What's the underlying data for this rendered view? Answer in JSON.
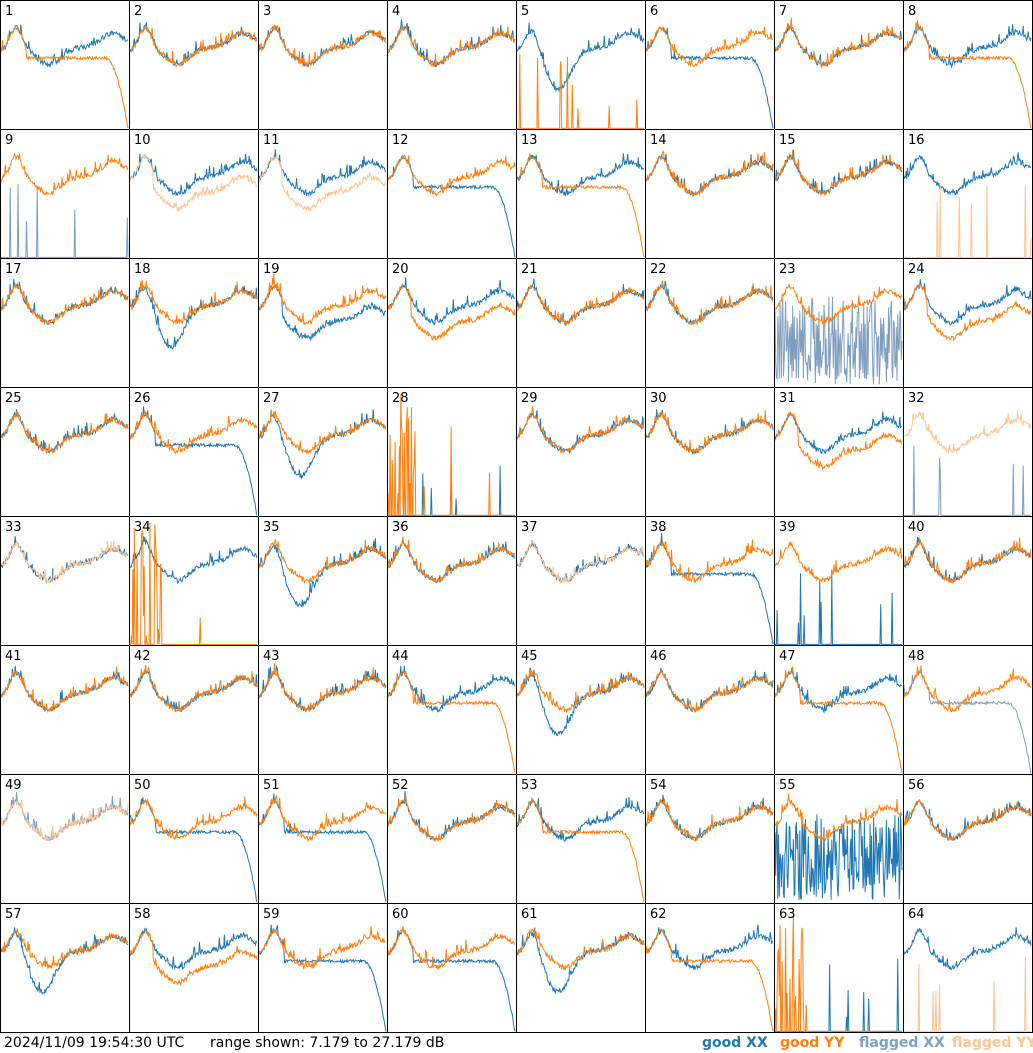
{
  "timestamp": "2024/11/09 19:54:30 UTC",
  "range_text": "range shown: 7.179 to 27.179 dB",
  "colors": {
    "good_xx": "#1f77b4",
    "good_yy": "#ff7f0e",
    "flagged_xx": "#7f9fbf",
    "flagged_yy": "#ffc493"
  },
  "legend": [
    {
      "word": "good",
      "pol": "XX",
      "color": "#1f77b4"
    },
    {
      "word": "good",
      "pol": "YY",
      "color": "#ff7f0e"
    },
    {
      "word": "flagged",
      "pol": "XX",
      "color": "#7f9fbf"
    },
    {
      "word": "flagged",
      "pol": "YY",
      "color": "#ffc493"
    }
  ],
  "chart_data": {
    "type": "line",
    "title": "",
    "ylim": [
      7.179,
      27.179
    ],
    "y_unit": "dB",
    "grid": "8x8 small multiples",
    "panels": [
      {
        "label": "1",
        "xx": "good",
        "yy": "good",
        "xx_shape": "normal",
        "yy_shape": "rolloff"
      },
      {
        "label": "2",
        "xx": "good",
        "yy": "good",
        "xx_shape": "normal",
        "yy_shape": "normal"
      },
      {
        "label": "3",
        "xx": "good",
        "yy": "good",
        "xx_shape": "normal",
        "yy_shape": "normal"
      },
      {
        "label": "4",
        "xx": "good",
        "yy": "good",
        "xx_shape": "normal",
        "yy_shape": "normal"
      },
      {
        "label": "5",
        "xx": "good",
        "yy": "good",
        "xx_shape": "dip",
        "yy_shape": "flat_spikes"
      },
      {
        "label": "6",
        "xx": "good",
        "yy": "good",
        "xx_shape": "rolloff",
        "yy_shape": "normal"
      },
      {
        "label": "7",
        "xx": "good",
        "yy": "good",
        "xx_shape": "normal",
        "yy_shape": "normal"
      },
      {
        "label": "8",
        "xx": "good",
        "yy": "good",
        "xx_shape": "normal",
        "yy_shape": "rolloff"
      },
      {
        "label": "9",
        "xx": "flagged",
        "yy": "good",
        "xx_shape": "flat_spikes",
        "yy_shape": "normal"
      },
      {
        "label": "10",
        "xx": "good",
        "yy": "flagged",
        "xx_shape": "normal",
        "yy_shape": "low"
      },
      {
        "label": "11",
        "xx": "good",
        "yy": "flagged",
        "xx_shape": "normal",
        "yy_shape": "low"
      },
      {
        "label": "12",
        "xx": "good",
        "yy": "good",
        "xx_shape": "rolloff",
        "yy_shape": "normal"
      },
      {
        "label": "13",
        "xx": "good",
        "yy": "good",
        "xx_shape": "normal",
        "yy_shape": "rolloff"
      },
      {
        "label": "14",
        "xx": "good",
        "yy": "good",
        "xx_shape": "normal",
        "yy_shape": "normal"
      },
      {
        "label": "15",
        "xx": "good",
        "yy": "good",
        "xx_shape": "normal",
        "yy_shape": "normal"
      },
      {
        "label": "16",
        "xx": "good",
        "yy": "flagged",
        "xx_shape": "normal",
        "yy_shape": "flat_spikes"
      },
      {
        "label": "17",
        "xx": "good",
        "yy": "good",
        "xx_shape": "normal",
        "yy_shape": "normal"
      },
      {
        "label": "18",
        "xx": "good",
        "yy": "good",
        "xx_shape": "dip",
        "yy_shape": "normal"
      },
      {
        "label": "19",
        "xx": "good",
        "yy": "good",
        "xx_shape": "low",
        "yy_shape": "normal"
      },
      {
        "label": "20",
        "xx": "good",
        "yy": "good",
        "xx_shape": "normal",
        "yy_shape": "low"
      },
      {
        "label": "21",
        "xx": "good",
        "yy": "good",
        "xx_shape": "normal",
        "yy_shape": "normal"
      },
      {
        "label": "22",
        "xx": "good",
        "yy": "good",
        "xx_shape": "normal",
        "yy_shape": "normal"
      },
      {
        "label": "23",
        "xx": "flagged",
        "yy": "good",
        "xx_shape": "noise",
        "yy_shape": "normal"
      },
      {
        "label": "24",
        "xx": "good",
        "yy": "good",
        "xx_shape": "normal",
        "yy_shape": "low"
      },
      {
        "label": "25",
        "xx": "good",
        "yy": "good",
        "xx_shape": "normal",
        "yy_shape": "normal"
      },
      {
        "label": "26",
        "xx": "good",
        "yy": "good",
        "xx_shape": "rolloff",
        "yy_shape": "normal"
      },
      {
        "label": "27",
        "xx": "good",
        "yy": "good",
        "xx_shape": "dip",
        "yy_shape": "normal"
      },
      {
        "label": "28",
        "xx": "good",
        "yy": "good",
        "xx_shape": "flat_spikes",
        "yy_shape": "burst"
      },
      {
        "label": "29",
        "xx": "good",
        "yy": "good",
        "xx_shape": "normal",
        "yy_shape": "normal"
      },
      {
        "label": "30",
        "xx": "good",
        "yy": "good",
        "xx_shape": "normal",
        "yy_shape": "normal"
      },
      {
        "label": "31",
        "xx": "good",
        "yy": "good",
        "xx_shape": "normal",
        "yy_shape": "low"
      },
      {
        "label": "32",
        "xx": "flagged",
        "yy": "flagged",
        "xx_shape": "flat_spikes",
        "yy_shape": "normal"
      },
      {
        "label": "33",
        "xx": "good",
        "yy": "flagged",
        "xx_shape": "normal",
        "yy_shape": "normal"
      },
      {
        "label": "34",
        "xx": "good",
        "yy": "good",
        "xx_shape": "normal",
        "yy_shape": "burst"
      },
      {
        "label": "35",
        "xx": "good",
        "yy": "good",
        "xx_shape": "dip",
        "yy_shape": "normal"
      },
      {
        "label": "36",
        "xx": "good",
        "yy": "good",
        "xx_shape": "normal",
        "yy_shape": "normal"
      },
      {
        "label": "37",
        "xx": "good",
        "yy": "flagged",
        "xx_shape": "normal",
        "yy_shape": "normal"
      },
      {
        "label": "38",
        "xx": "good",
        "yy": "good",
        "xx_shape": "rolloff",
        "yy_shape": "normal"
      },
      {
        "label": "39",
        "xx": "good",
        "yy": "good",
        "xx_shape": "flat_spikes",
        "yy_shape": "normal"
      },
      {
        "label": "40",
        "xx": "good",
        "yy": "good",
        "xx_shape": "normal",
        "yy_shape": "normal"
      },
      {
        "label": "41",
        "xx": "good",
        "yy": "good",
        "xx_shape": "normal",
        "yy_shape": "normal"
      },
      {
        "label": "42",
        "xx": "good",
        "yy": "good",
        "xx_shape": "normal",
        "yy_shape": "normal"
      },
      {
        "label": "43",
        "xx": "good",
        "yy": "good",
        "xx_shape": "normal",
        "yy_shape": "normal"
      },
      {
        "label": "44",
        "xx": "good",
        "yy": "good",
        "xx_shape": "normal",
        "yy_shape": "rolloff"
      },
      {
        "label": "45",
        "xx": "good",
        "yy": "good",
        "xx_shape": "dip",
        "yy_shape": "normal"
      },
      {
        "label": "46",
        "xx": "good",
        "yy": "good",
        "xx_shape": "normal",
        "yy_shape": "normal"
      },
      {
        "label": "47",
        "xx": "good",
        "yy": "good",
        "xx_shape": "normal",
        "yy_shape": "rolloff"
      },
      {
        "label": "48",
        "xx": "flagged",
        "yy": "good",
        "xx_shape": "rolloff",
        "yy_shape": "normal"
      },
      {
        "label": "49",
        "xx": "flagged",
        "yy": "flagged",
        "xx_shape": "normal",
        "yy_shape": "normal"
      },
      {
        "label": "50",
        "xx": "good",
        "yy": "good",
        "xx_shape": "rolloff",
        "yy_shape": "normal"
      },
      {
        "label": "51",
        "xx": "good",
        "yy": "good",
        "xx_shape": "rolloff",
        "yy_shape": "normal"
      },
      {
        "label": "52",
        "xx": "good",
        "yy": "good",
        "xx_shape": "normal",
        "yy_shape": "normal"
      },
      {
        "label": "53",
        "xx": "good",
        "yy": "good",
        "xx_shape": "normal",
        "yy_shape": "rolloff"
      },
      {
        "label": "54",
        "xx": "good",
        "yy": "good",
        "xx_shape": "normal",
        "yy_shape": "normal"
      },
      {
        "label": "55",
        "xx": "good",
        "yy": "good",
        "xx_shape": "noise",
        "yy_shape": "normal"
      },
      {
        "label": "56",
        "xx": "good",
        "yy": "good",
        "xx_shape": "normal",
        "yy_shape": "normal"
      },
      {
        "label": "57",
        "xx": "good",
        "yy": "good",
        "xx_shape": "dip",
        "yy_shape": "normal"
      },
      {
        "label": "58",
        "xx": "good",
        "yy": "good",
        "xx_shape": "normal",
        "yy_shape": "low"
      },
      {
        "label": "59",
        "xx": "good",
        "yy": "good",
        "xx_shape": "rolloff",
        "yy_shape": "normal"
      },
      {
        "label": "60",
        "xx": "good",
        "yy": "good",
        "xx_shape": "rolloff",
        "yy_shape": "normal"
      },
      {
        "label": "61",
        "xx": "good",
        "yy": "good",
        "xx_shape": "dip",
        "yy_shape": "normal"
      },
      {
        "label": "62",
        "xx": "good",
        "yy": "good",
        "xx_shape": "normal",
        "yy_shape": "rolloff"
      },
      {
        "label": "63",
        "xx": "good",
        "yy": "good",
        "xx_shape": "flat_spikes",
        "yy_shape": "burst"
      },
      {
        "label": "64",
        "xx": "good",
        "yy": "flagged",
        "xx_shape": "normal",
        "yy_shape": "flat_spikes"
      }
    ]
  }
}
